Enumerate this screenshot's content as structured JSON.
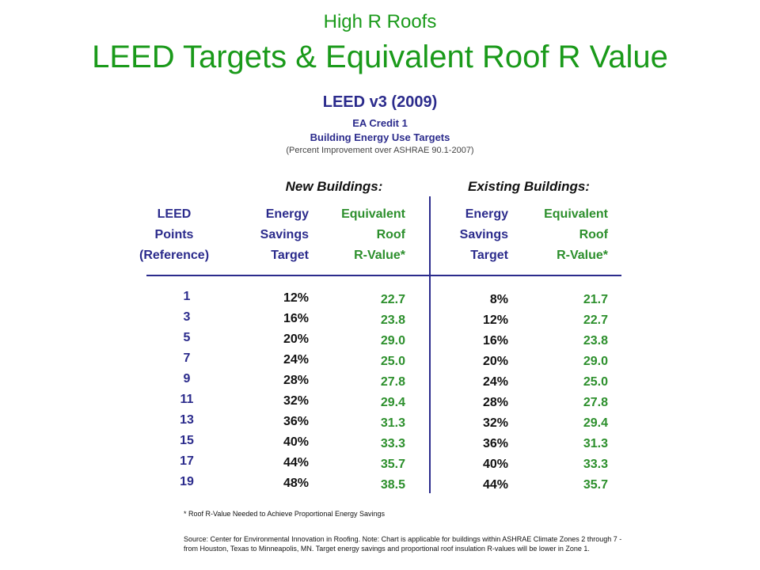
{
  "header": {
    "subtitle": "High R Roofs",
    "title": "LEED Targets & Equivalent Roof R Value"
  },
  "leed": {
    "heading": "LEED v3 (2009)",
    "credit": "EA Credit 1",
    "targets": "Building Energy Use Targets",
    "improvement_note": "(Percent Improvement over ASHRAE 90.1-2007)"
  },
  "groups": {
    "new": "New Buildings:",
    "existing": "Existing Buildings:"
  },
  "columns": {
    "points": [
      "LEED",
      "Points",
      "(Reference)"
    ],
    "energy_new": [
      "Energy",
      "Savings",
      "Target"
    ],
    "roof_new": [
      "Equivalent",
      "Roof",
      "R-Value*"
    ],
    "energy_existing": [
      "Energy",
      "Savings",
      "Target"
    ],
    "roof_existing": [
      "Equivalent",
      "Roof",
      "R-Value*"
    ]
  },
  "table": {
    "points": [
      "1",
      "3",
      "5",
      "7",
      "9",
      "11",
      "13",
      "15",
      "17",
      "19"
    ],
    "energy_new": [
      "12%",
      "16%",
      "20%",
      "24%",
      "28%",
      "32%",
      "36%",
      "40%",
      "44%",
      "48%"
    ],
    "roof_new": [
      "22.7",
      "23.8",
      "29.0",
      "25.0",
      "27.8",
      "29.4",
      "31.3",
      "33.3",
      "35.7",
      "38.5"
    ],
    "energy_existing": [
      "8%",
      "12%",
      "16%",
      "20%",
      "24%",
      "28%",
      "32%",
      "36%",
      "40%",
      "44%"
    ],
    "roof_existing": [
      "21.7",
      "22.7",
      "23.8",
      "29.0",
      "25.0",
      "27.8",
      "29.4",
      "31.3",
      "33.3",
      "35.7"
    ]
  },
  "footnote": "* Roof R-Value Needed to Achieve Proportional Energy Savings",
  "source": "Source: Center for Environmental Innovation in Roofing. Note: Chart is applicable for buildings within ASHRAE Climate Zones 2 through 7 - from Houston, Texas to Minneapolis, MN. Target energy savings and proportional roof insulation R-values will be lower in Zone 1."
}
